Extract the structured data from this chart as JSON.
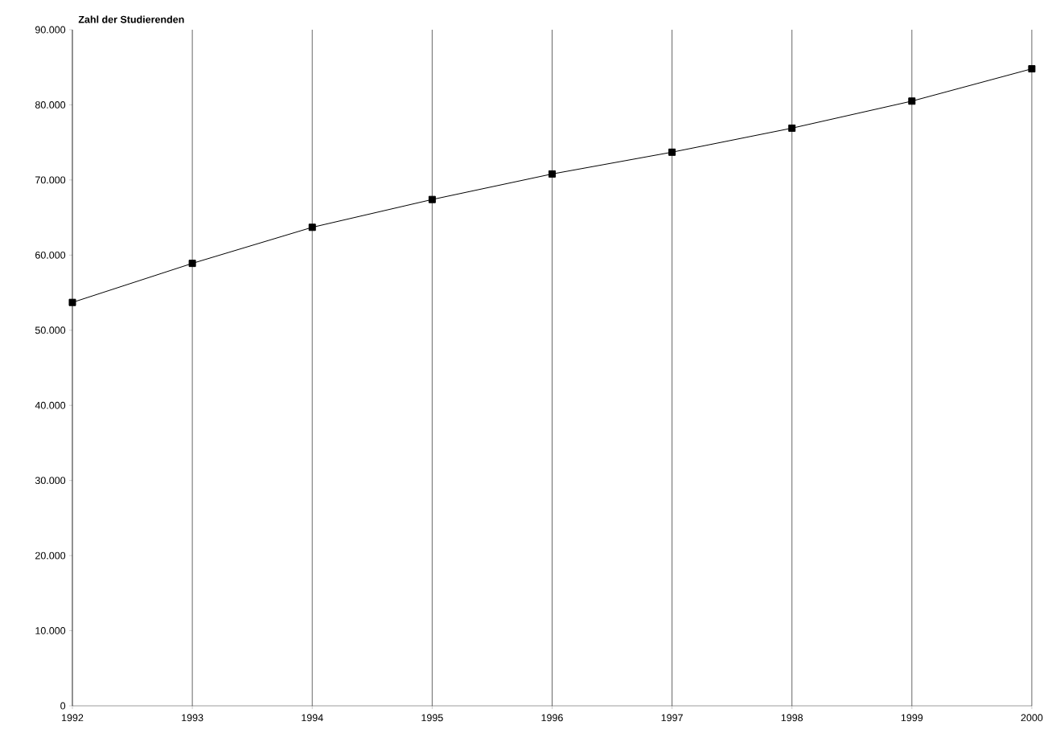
{
  "chart_data": {
    "type": "line",
    "ylabel": "Zahl der Studierenden",
    "x": [
      1992,
      1993,
      1994,
      1995,
      1996,
      1997,
      1998,
      1999,
      2000
    ],
    "values": [
      53700,
      58900,
      63700,
      67400,
      70800,
      73700,
      76900,
      80500,
      84800
    ],
    "color": "#000000",
    "marker": "square",
    "line_style": "solid",
    "grid": "x",
    "xlim": [
      1992,
      2000
    ],
    "xticks": [
      1992,
      1993,
      1994,
      1995,
      1996,
      1997,
      1998,
      1999,
      2000
    ],
    "ylim": [
      0,
      90000
    ],
    "yticks": [
      {
        "value": 0,
        "label": "0"
      },
      {
        "value": 10000,
        "label": "10.000"
      },
      {
        "value": 20000,
        "label": "20.000"
      },
      {
        "value": 30000,
        "label": "30.000"
      },
      {
        "value": 40000,
        "label": "40.000"
      },
      {
        "value": 50000,
        "label": "50.000"
      },
      {
        "value": 60000,
        "label": "60.000"
      },
      {
        "value": 70000,
        "label": "70.000"
      },
      {
        "value": 80000,
        "label": "80.000"
      },
      {
        "value": 90000,
        "label": "90.000"
      }
    ]
  }
}
